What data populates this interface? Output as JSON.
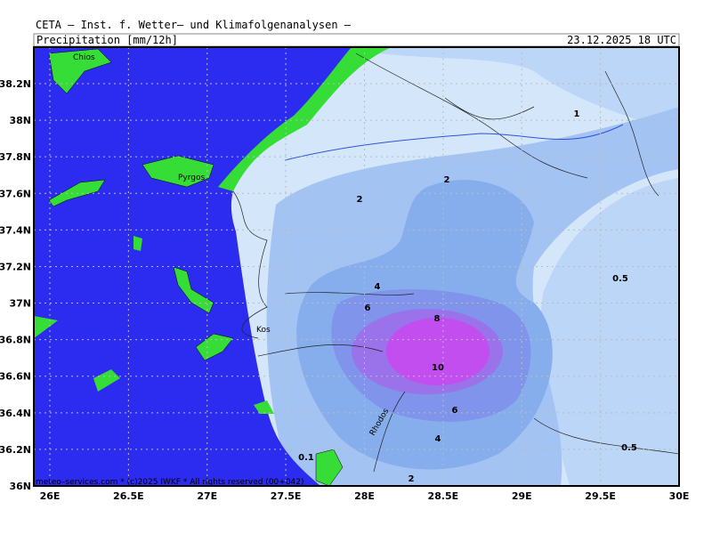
{
  "header": {
    "agency": "CETA – Inst. f. Wetter– und Klimafolgenanalysen –",
    "product": "Precipitation [mm/12h]",
    "valid": "23.12.2025 18 UTC"
  },
  "map": {
    "lat_labels": [
      "38.2N",
      "38N",
      "37.8N",
      "37.6N",
      "37.4N",
      "37.2N",
      "37N",
      "36.8N",
      "36.6N",
      "36.4N",
      "36.2N",
      "36N"
    ],
    "lon_labels": [
      "26E",
      "26.5E",
      "27E",
      "27.5E",
      "28E",
      "28.5E",
      "29E",
      "29.5E",
      "30E"
    ],
    "places": [
      "Chios",
      "Pyrgos",
      "Kos",
      "Rhodos"
    ],
    "contour_labels": [
      "1",
      "2",
      "2",
      "4",
      "6",
      "8",
      "10",
      "6",
      "4",
      "2",
      "0.5",
      "0.5",
      "0.1"
    ],
    "footer": "meteo–services.com * (c)2025 IWKF * All rights reserved (00+042)"
  }
}
